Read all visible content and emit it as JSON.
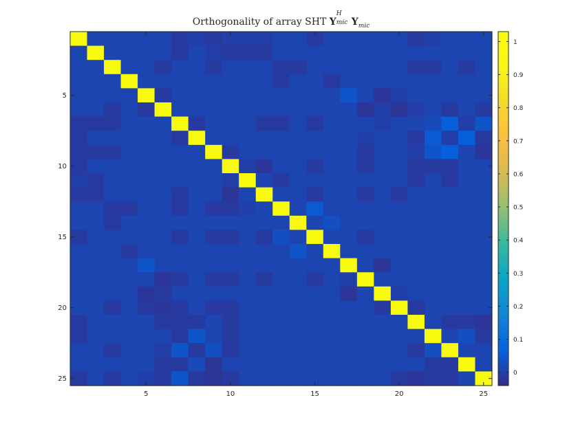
{
  "chart_data": {
    "type": "heatmap",
    "title": {
      "prefix": "Orthogonality of array SHT",
      "matrix_symbol": "Y",
      "superscript": "H",
      "subscript": "mic"
    },
    "xlabel": "",
    "ylabel": "",
    "x_ticks": [
      5,
      10,
      15,
      20,
      25
    ],
    "y_ticks": [
      5,
      10,
      15,
      20,
      25
    ],
    "xlim": [
      0.5,
      25.5
    ],
    "ylim": [
      0.5,
      25.5
    ],
    "y_direction": "reversed",
    "grid": false,
    "colormap": "parula",
    "colorbar": {
      "location": "right",
      "ticks": [
        0,
        0.1,
        0.2,
        0.3,
        0.4,
        0.5,
        0.6,
        0.7,
        0.8,
        0.9,
        1
      ],
      "tick_labels": [
        "0",
        "0.1",
        "0.2",
        "0.3",
        "0.4",
        "0.5",
        "0.6",
        "0.7",
        "0.8",
        "0.9",
        "1"
      ],
      "limits": [
        -0.04,
        1.03
      ]
    },
    "size": 25,
    "diagonal_value": 1.0,
    "background_value": 0.01,
    "off_diagonal_values": [
      [
        1,
        7,
        -0.01
      ],
      [
        1,
        8,
        0.0
      ],
      [
        1,
        9,
        -0.01
      ],
      [
        1,
        10,
        0.0
      ],
      [
        1,
        11,
        0.0
      ],
      [
        1,
        12,
        0.0
      ],
      [
        1,
        15,
        -0.01
      ],
      [
        1,
        21,
        -0.01
      ],
      [
        1,
        22,
        0.0
      ],
      [
        2,
        7,
        -0.01
      ],
      [
        2,
        9,
        0.0
      ],
      [
        2,
        10,
        -0.01
      ],
      [
        2,
        11,
        -0.01
      ],
      [
        2,
        12,
        -0.01
      ],
      [
        3,
        6,
        -0.01
      ],
      [
        3,
        9,
        -0.01
      ],
      [
        3,
        13,
        -0.01
      ],
      [
        3,
        14,
        -0.01
      ],
      [
        3,
        21,
        -0.01
      ],
      [
        3,
        22,
        -0.01
      ],
      [
        3,
        24,
        -0.01
      ],
      [
        4,
        13,
        -0.01
      ],
      [
        4,
        16,
        -0.01
      ],
      [
        5,
        6,
        -0.01
      ],
      [
        5,
        17,
        0.04
      ],
      [
        5,
        19,
        -0.02
      ],
      [
        5,
        20,
        0.0
      ],
      [
        6,
        3,
        -0.01
      ],
      [
        6,
        5,
        -0.01
      ],
      [
        6,
        18,
        -0.02
      ],
      [
        6,
        19,
        0.0
      ],
      [
        6,
        20,
        -0.02
      ],
      [
        6,
        21,
        0.0
      ],
      [
        6,
        23,
        -0.01
      ],
      [
        6,
        25,
        -0.01
      ],
      [
        7,
        1,
        -0.01
      ],
      [
        7,
        2,
        -0.01
      ],
      [
        7,
        3,
        -0.01
      ],
      [
        7,
        8,
        -0.01
      ],
      [
        7,
        12,
        -0.01
      ],
      [
        7,
        13,
        -0.01
      ],
      [
        7,
        15,
        -0.01
      ],
      [
        7,
        19,
        0.0
      ],
      [
        7,
        22,
        0.02
      ],
      [
        7,
        23,
        0.06
      ],
      [
        7,
        24,
        0.0
      ],
      [
        7,
        25,
        0.04
      ],
      [
        8,
        1,
        -0.01
      ],
      [
        8,
        7,
        -0.01
      ],
      [
        8,
        18,
        0.0
      ],
      [
        8,
        21,
        -0.01
      ],
      [
        8,
        22,
        0.05
      ],
      [
        8,
        23,
        0.0
      ],
      [
        8,
        24,
        0.06
      ],
      [
        8,
        25,
        -0.01
      ],
      [
        9,
        1,
        -0.01
      ],
      [
        9,
        2,
        -0.01
      ],
      [
        9,
        3,
        -0.01
      ],
      [
        9,
        10,
        -0.01
      ],
      [
        9,
        18,
        -0.01
      ],
      [
        9,
        21,
        0.0
      ],
      [
        9,
        22,
        0.04
      ],
      [
        9,
        23,
        0.06
      ],
      [
        9,
        25,
        -0.02
      ],
      [
        10,
        1,
        -0.01
      ],
      [
        10,
        11,
        0.0
      ],
      [
        10,
        12,
        -0.02
      ],
      [
        10,
        15,
        -0.01
      ],
      [
        10,
        18,
        -0.01
      ],
      [
        10,
        21,
        -0.01
      ],
      [
        10,
        22,
        -0.01
      ],
      [
        10,
        23,
        -0.01
      ],
      [
        11,
        1,
        0.0
      ],
      [
        11,
        2,
        -0.01
      ],
      [
        11,
        10,
        0.0
      ],
      [
        11,
        13,
        -0.01
      ],
      [
        11,
        21,
        -0.01
      ],
      [
        11,
        23,
        -0.01
      ],
      [
        12,
        1,
        -0.01
      ],
      [
        12,
        2,
        -0.01
      ],
      [
        12,
        7,
        -0.01
      ],
      [
        12,
        10,
        -0.02
      ],
      [
        12,
        15,
        -0.01
      ],
      [
        12,
        18,
        -0.01
      ],
      [
        12,
        20,
        -0.01
      ],
      [
        13,
        3,
        -0.01
      ],
      [
        13,
        4,
        -0.01
      ],
      [
        13,
        7,
        -0.01
      ],
      [
        13,
        9,
        -0.01
      ],
      [
        13,
        10,
        -0.01
      ],
      [
        13,
        11,
        0.0
      ],
      [
        13,
        15,
        0.05
      ],
      [
        14,
        3,
        -0.01
      ],
      [
        14,
        16,
        0.03
      ],
      [
        15,
        1,
        -0.01
      ],
      [
        15,
        7,
        -0.01
      ],
      [
        15,
        9,
        -0.01
      ],
      [
        15,
        10,
        -0.01
      ],
      [
        15,
        12,
        -0.01
      ],
      [
        15,
        13,
        0.03
      ],
      [
        15,
        18,
        -0.01
      ],
      [
        16,
        4,
        -0.01
      ],
      [
        16,
        14,
        0.04
      ],
      [
        17,
        5,
        0.04
      ],
      [
        17,
        19,
        -0.02
      ],
      [
        18,
        6,
        -0.02
      ],
      [
        18,
        7,
        -0.01
      ],
      [
        18,
        9,
        -0.01
      ],
      [
        18,
        10,
        -0.01
      ],
      [
        18,
        12,
        -0.01
      ],
      [
        18,
        15,
        -0.01
      ],
      [
        18,
        17,
        0.0
      ],
      [
        19,
        5,
        -0.02
      ],
      [
        19,
        6,
        -0.01
      ],
      [
        19,
        17,
        -0.02
      ],
      [
        19,
        20,
        0.0
      ],
      [
        20,
        3,
        -0.01
      ],
      [
        20,
        5,
        -0.01
      ],
      [
        20,
        6,
        -0.02
      ],
      [
        20,
        7,
        -0.01
      ],
      [
        20,
        9,
        -0.01
      ],
      [
        20,
        10,
        -0.01
      ],
      [
        20,
        19,
        -0.01
      ],
      [
        20,
        21,
        -0.01
      ],
      [
        21,
        1,
        -0.01
      ],
      [
        21,
        6,
        -0.01
      ],
      [
        21,
        7,
        -0.01
      ],
      [
        21,
        8,
        -0.01
      ],
      [
        21,
        10,
        -0.01
      ],
      [
        21,
        23,
        -0.01
      ],
      [
        21,
        24,
        -0.01
      ],
      [
        21,
        25,
        -0.02
      ],
      [
        22,
        1,
        -0.01
      ],
      [
        22,
        7,
        -0.01
      ],
      [
        22,
        8,
        0.04
      ],
      [
        22,
        10,
        -0.01
      ],
      [
        22,
        24,
        0.03
      ],
      [
        22,
        25,
        -0.01
      ],
      [
        23,
        3,
        -0.01
      ],
      [
        23,
        6,
        0.0
      ],
      [
        23,
        7,
        0.04
      ],
      [
        23,
        8,
        -0.01
      ],
      [
        23,
        9,
        0.03
      ],
      [
        23,
        10,
        -0.01
      ],
      [
        23,
        21,
        -0.01
      ],
      [
        23,
        22,
        0.03
      ],
      [
        24,
        6,
        -0.01
      ],
      [
        24,
        7,
        -0.01
      ],
      [
        24,
        8,
        0.02
      ],
      [
        24,
        9,
        -0.02
      ],
      [
        24,
        22,
        -0.01
      ],
      [
        24,
        23,
        -0.01
      ],
      [
        25,
        1,
        -0.01
      ],
      [
        25,
        3,
        -0.01
      ],
      [
        25,
        5,
        0.0
      ],
      [
        25,
        6,
        -0.01
      ],
      [
        25,
        7,
        0.04
      ],
      [
        25,
        8,
        -0.01
      ],
      [
        25,
        9,
        -0.02
      ],
      [
        25,
        10,
        -0.01
      ],
      [
        25,
        20,
        -0.01
      ],
      [
        25,
        21,
        -0.02
      ],
      [
        25,
        22,
        -0.01
      ],
      [
        25,
        23,
        -0.01
      ]
    ]
  }
}
